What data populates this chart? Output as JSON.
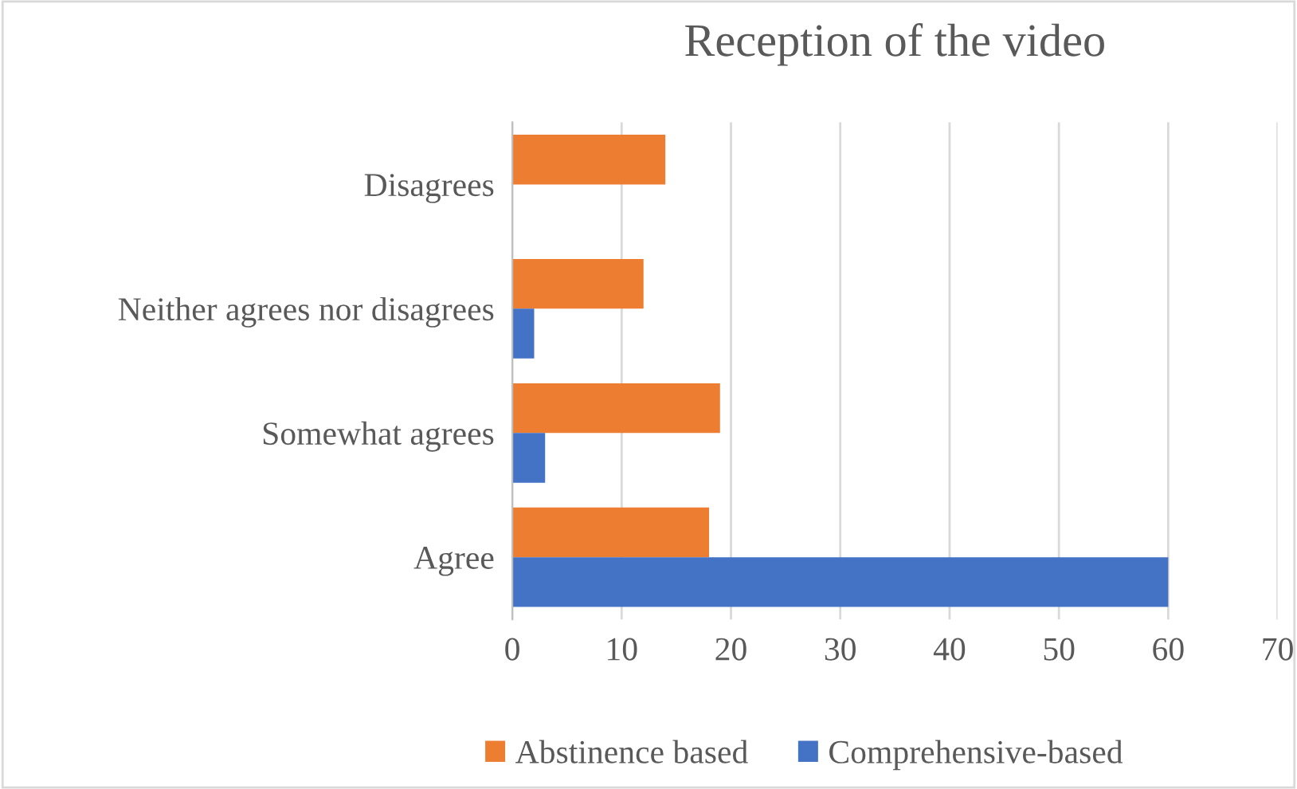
{
  "chart_data": {
    "type": "bar",
    "orientation": "horizontal",
    "title": "Reception of the video",
    "categories": [
      "Disagrees",
      "Neither agrees nor disagrees",
      "Somewhat agrees",
      "Agree"
    ],
    "series": [
      {
        "name": "Abstinence based",
        "color": "#ed7d31",
        "values": [
          14,
          12,
          19,
          18
        ]
      },
      {
        "name": "Comprehensive-based",
        "color": "#4472c4",
        "values": [
          null,
          2,
          3,
          60
        ]
      }
    ],
    "xlim": [
      0,
      70
    ],
    "xticks": [
      0,
      10,
      20,
      30,
      40,
      50,
      60,
      70
    ],
    "grid": "x",
    "legend": "bottom"
  }
}
